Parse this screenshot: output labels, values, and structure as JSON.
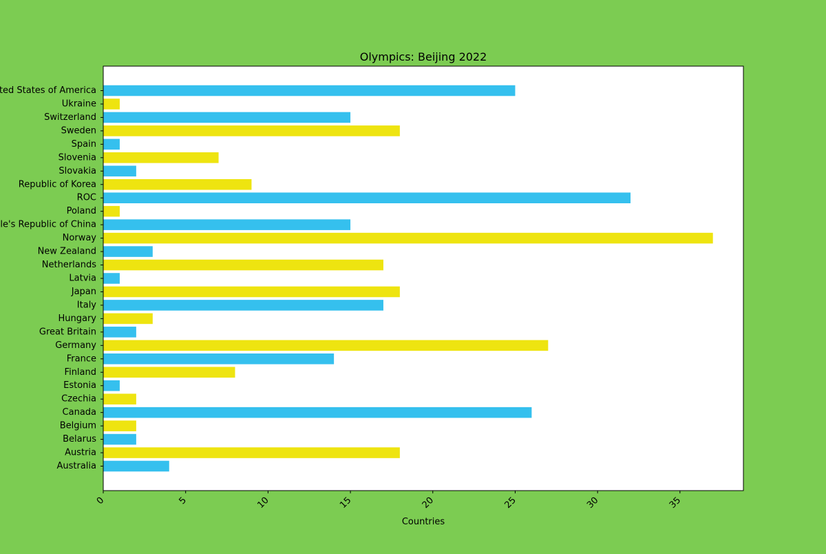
{
  "chart_data": {
    "type": "bar",
    "orientation": "horizontal",
    "title": "Olympics: Beijing 2022",
    "xlabel": "Countries",
    "ylabel": "",
    "xlim": [
      0,
      38.85
    ],
    "xticks": [
      0,
      5,
      10,
      15,
      20,
      25,
      30,
      35
    ],
    "grid": false,
    "legend": "none",
    "colors": {
      "background": "#7ccc52",
      "plot_area": "#ffffff",
      "bar_a": "#35c0ee",
      "bar_b": "#eee410"
    },
    "categories": [
      "Australia",
      "Austria",
      "Belarus",
      "Belgium",
      "Canada",
      "Czechia",
      "Estonia",
      "Finland",
      "France",
      "Germany",
      "Great Britain",
      "Hungary",
      "Italy",
      "Japan",
      "Latvia",
      "Netherlands",
      "New Zealand",
      "Norway",
      "People's Republic of China",
      "Poland",
      "ROC",
      "Republic of Korea",
      "Slovakia",
      "Slovenia",
      "Spain",
      "Sweden",
      "Switzerland",
      "Ukraine",
      "United States of America"
    ],
    "values": [
      4,
      18,
      2,
      2,
      26,
      2,
      1,
      8,
      14,
      27,
      2,
      3,
      17,
      18,
      1,
      17,
      3,
      37,
      15,
      1,
      32,
      9,
      2,
      7,
      1,
      18,
      15,
      1,
      25
    ]
  }
}
